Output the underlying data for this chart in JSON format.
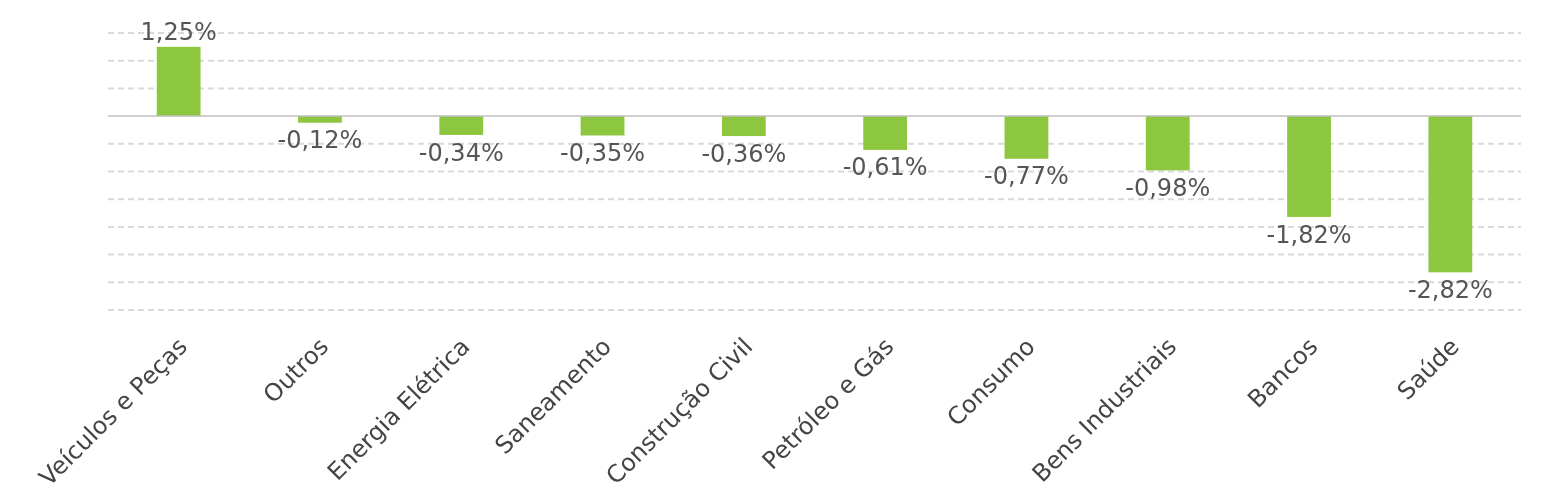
{
  "chart_data": {
    "type": "bar",
    "categories": [
      "Veículos e Peças",
      "Outros",
      "Energia Elétrica",
      "Saneamento",
      "Construção Civil",
      "Petróleo e Gás",
      "Consumo",
      "Bens Industriais",
      "Bancos",
      "Saúde"
    ],
    "values": [
      1.25,
      -0.12,
      -0.34,
      -0.35,
      -0.36,
      -0.61,
      -0.77,
      -0.98,
      -1.82,
      -2.82
    ],
    "value_labels": [
      "1,25%",
      "-0,12%",
      "-0,34%",
      "-0,35%",
      "-0,36%",
      "-0,61%",
      "-0,77%",
      "-0,98%",
      "-1,82%",
      "-2,82%"
    ],
    "color": "#8dc63f",
    "ylim": [
      -3.5,
      1.5
    ],
    "yticks": [
      {
        "value": 1.5,
        "label": null
      },
      {
        "value": 1,
        "label": null
      },
      {
        "value": 0.5,
        "label": null
      },
      {
        "value": 0,
        "label": null
      },
      {
        "value": -0.5,
        "label": null
      },
      {
        "value": -1,
        "label": null
      },
      {
        "value": -1.5,
        "label": null
      },
      {
        "value": -2,
        "label": null
      },
      {
        "value": -2.5,
        "label": null
      },
      {
        "value": -3,
        "label": null
      },
      {
        "value": -3.5,
        "label": null
      }
    ],
    "grid": "y",
    "tick_labels": "x"
  }
}
